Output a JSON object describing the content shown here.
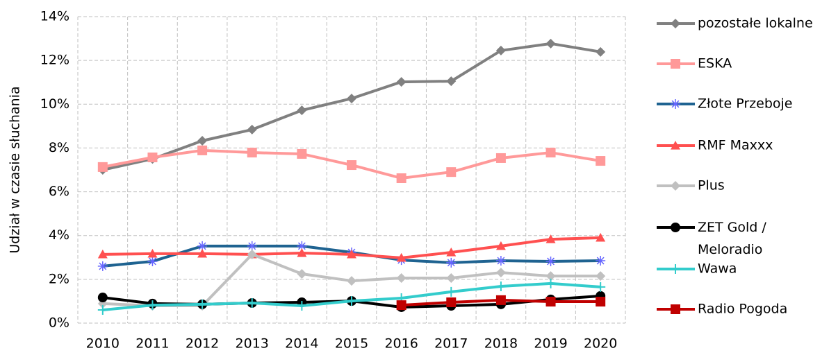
{
  "chart_data": {
    "type": "line",
    "y_label": "Udział  w  czasie słuchania",
    "categories": [
      "2010",
      "2011",
      "2012",
      "2013",
      "2014",
      "2015",
      "2016",
      "2017",
      "2018",
      "2019",
      "2020"
    ],
    "ylim": [
      0,
      14
    ],
    "yticks": [
      {
        "value": 0,
        "label": "0%"
      },
      {
        "value": 2,
        "label": "2%"
      },
      {
        "value": 4,
        "label": "4%"
      },
      {
        "value": 6,
        "label": "6%"
      },
      {
        "value": 8,
        "label": "8%"
      },
      {
        "value": 10,
        "label": "10%"
      },
      {
        "value": 12,
        "label": "12%"
      },
      {
        "value": 14,
        "label": "14%"
      }
    ],
    "grid": true,
    "legend": "right",
    "series": [
      {
        "name": "pozostałe lokalne",
        "color": "#808080",
        "marker": "diamond",
        "marker_color": "#808080",
        "values": [
          7.0,
          7.5,
          8.33,
          8.84,
          9.72,
          10.26,
          11.02,
          11.05,
          12.45,
          12.77,
          12.39
        ]
      },
      {
        "name": "ESKA",
        "color": "#ff9999",
        "marker": "square",
        "marker_color": "#ff9999",
        "values": [
          7.13,
          7.57,
          7.89,
          7.79,
          7.73,
          7.22,
          6.62,
          6.9,
          7.54,
          7.79,
          7.41
        ]
      },
      {
        "name": "Złote Przeboje",
        "color": "#1f6391",
        "marker": "star",
        "marker_color": "#6666ff",
        "values": [
          2.6,
          2.82,
          3.52,
          3.52,
          3.52,
          3.23,
          2.88,
          2.76,
          2.85,
          2.82,
          2.85
        ]
      },
      {
        "name": "RMF Maxxx",
        "color": "#ff5050",
        "marker": "triangle",
        "marker_color": "#ff5050",
        "values": [
          3.14,
          3.17,
          3.17,
          3.14,
          3.2,
          3.14,
          2.98,
          3.23,
          3.52,
          3.83,
          3.9
        ]
      },
      {
        "name": "Plus",
        "color": "#c0c0c0",
        "marker": "diamond",
        "marker_color": "#c0c0c0",
        "values": [
          0.89,
          0.79,
          0.79,
          3.14,
          2.25,
          1.93,
          2.06,
          2.06,
          2.31,
          2.15,
          2.15
        ]
      },
      {
        "name": "ZET Gold / Meloradio",
        "color": "#000000",
        "marker": "circle",
        "marker_color": "#000000",
        "values": [
          1.17,
          0.89,
          0.86,
          0.92,
          0.95,
          1.01,
          0.73,
          0.79,
          0.86,
          1.08,
          1.24
        ]
      },
      {
        "name": "Wawa",
        "color": "#33cccc",
        "marker": "plus",
        "marker_color": "#33cccc",
        "values": [
          0.6,
          0.82,
          0.86,
          0.92,
          0.79,
          1.01,
          1.14,
          1.43,
          1.68,
          1.81,
          1.65
        ]
      },
      {
        "name": "Radio Pogoda",
        "color": "#c00000",
        "marker": "square",
        "marker_color": "#c00000",
        "values": [
          null,
          null,
          null,
          null,
          null,
          null,
          0.82,
          0.95,
          1.05,
          0.98,
          0.98
        ]
      }
    ]
  }
}
